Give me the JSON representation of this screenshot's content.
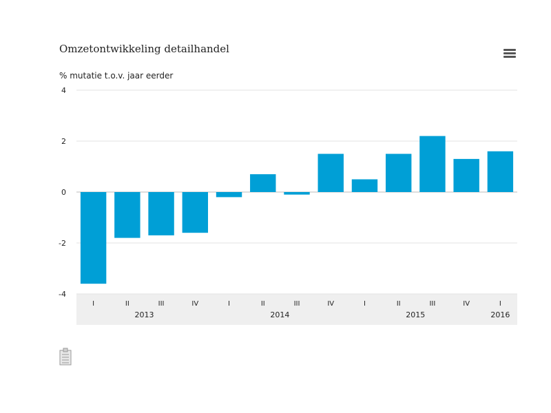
{
  "header": {
    "title": "Omzetontwikkeling detailhandel",
    "menu_icon": "hamburger-menu-icon"
  },
  "footer": {
    "icon": "clipboard-icon"
  },
  "chart_data": {
    "type": "bar",
    "title": "Omzetontwikkeling detailhandel",
    "ylabel": "% mutatie t.o.v. jaar eerder",
    "xlabel": "",
    "ylim": [
      -4,
      4
    ],
    "yticks": [
      -4,
      -2,
      0,
      2,
      4
    ],
    "grid": true,
    "legend": "none",
    "bar_color": "#009fd6",
    "categories": [
      "I",
      "II",
      "III",
      "IV",
      "I",
      "II",
      "III",
      "IV",
      "I",
      "II",
      "III",
      "IV",
      "I"
    ],
    "years": [
      {
        "label": "2013",
        "start": 0,
        "end": 3
      },
      {
        "label": "2014",
        "start": 4,
        "end": 7
      },
      {
        "label": "2015",
        "start": 8,
        "end": 11
      },
      {
        "label": "2016",
        "start": 12,
        "end": 12
      }
    ],
    "values": [
      -3.6,
      -1.8,
      -1.7,
      -1.6,
      -0.2,
      0.7,
      -0.1,
      1.5,
      0.5,
      1.5,
      2.2,
      1.3,
      1.6
    ]
  }
}
